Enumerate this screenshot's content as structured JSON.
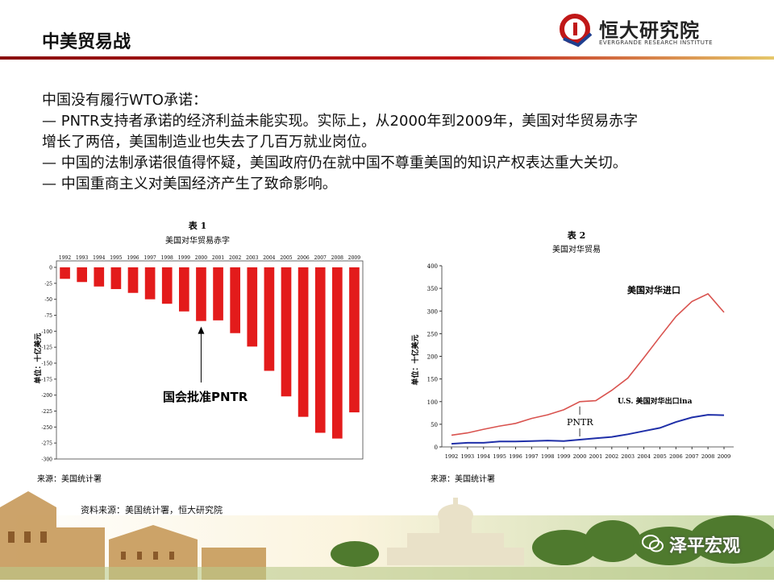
{
  "slide": {
    "title": "中美贸易战",
    "logo_name": "恒大研究院",
    "logo_sub": "EVERGRANDE RESEARCH INSTITUTE",
    "body_lines": [
      "中国没有履行WTO承诺：",
      "— PNTR支持者承诺的经济利益未能实现。实际上，从2000年到2009年，美国对华贸易赤字",
      "增长了两倍，美国制造业也失去了几百万就业岗位。",
      "— 中国的法制承诺很值得怀疑，美国政府仍在就中国不尊重美国的知识产权表达重大关切。",
      "—  中国重商主义对美国经济产生了致命影响。"
    ],
    "source": "资料来源：美国统计署，恒大研究院",
    "watermark": "泽平宏观",
    "colors": {
      "accent": "#c01818",
      "bar": "#e31b1b",
      "import_line": "#d9534f",
      "export_line": "#1f2fa8"
    }
  },
  "chart_data": [
    {
      "type": "bar",
      "title": "表 1",
      "subtitle": "美国对华贸易赤字",
      "ylabel": "单位：十亿美元",
      "categories": [
        "1992",
        "1993",
        "1994",
        "1995",
        "1996",
        "1997",
        "1998",
        "1999",
        "2000",
        "2001",
        "2002",
        "2003",
        "2004",
        "2005",
        "2006",
        "2007",
        "2008",
        "2009"
      ],
      "values": [
        -18,
        -23,
        -30,
        -34,
        -40,
        -50,
        -57,
        -69,
        -84,
        -83,
        -103,
        -124,
        -162,
        -202,
        -234,
        -259,
        -268,
        -227
      ],
      "ylim": [
        -300,
        0
      ],
      "yticks": [
        "0",
        "-25",
        "-50",
        "-75",
        "-100",
        "-125",
        "-150",
        "-175",
        "-200",
        "-225",
        "-250",
        "-275",
        "-300"
      ],
      "annotation": "国会批准PNTR",
      "note": "来源：美国统计署"
    },
    {
      "type": "line",
      "title": "表 2",
      "subtitle": "美国对华贸易",
      "ylabel": "单位：十亿美元",
      "x": [
        "1992",
        "1993",
        "1994",
        "1995",
        "1996",
        "1997",
        "1998",
        "1999",
        "2000",
        "2001",
        "2002",
        "2003",
        "2004",
        "2005",
        "2006",
        "2007",
        "2008",
        "2009"
      ],
      "ylim": [
        0,
        400
      ],
      "yticks": [
        "0",
        "50",
        "100",
        "150",
        "200",
        "250",
        "300",
        "350",
        "400"
      ],
      "series": [
        {
          "name": "美国对华进口",
          "values": [
            26,
            31,
            39,
            46,
            52,
            63,
            71,
            82,
            100,
            102,
            125,
            152,
            197,
            243,
            288,
            321,
            338,
            297
          ]
        },
        {
          "name": "U.S. 美国对华出口ina",
          "values": [
            7,
            9,
            9,
            12,
            12,
            13,
            14,
            13,
            16,
            19,
            22,
            28,
            35,
            42,
            55,
            65,
            71,
            70
          ]
        }
      ],
      "annotation": "PNTR",
      "note": "来源：美国统计署"
    }
  ]
}
